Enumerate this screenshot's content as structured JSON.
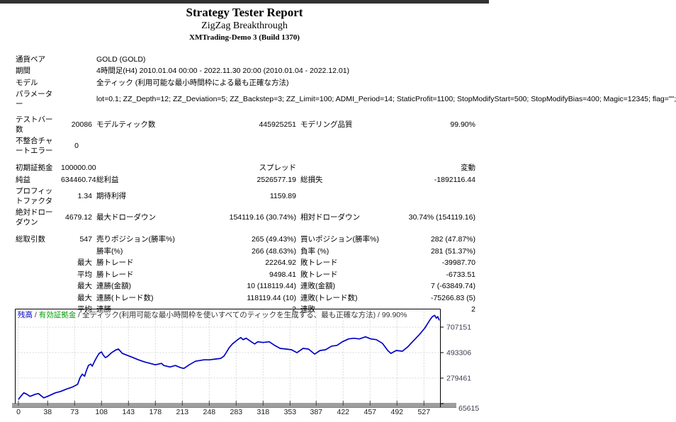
{
  "header": {
    "title": "Strategy Tester Report",
    "expert_name": "ZigZag Breakthrough",
    "server": "XMTrading-Demo 3 (Build 1370)"
  },
  "report": {
    "rows": [
      {
        "cells": [
          {
            "t": "通貨ペア"
          },
          {
            "t": ""
          },
          {
            "t": "GOLD (GOLD)",
            "s": 4
          }
        ]
      },
      {
        "cells": [
          {
            "t": "期間"
          },
          {
            "t": ""
          },
          {
            "t": "4時間足(H4) 2010.01.04 00:00 - 2022.11.30 20:00 (2010.01.04 - 2022.12.01)",
            "s": 4
          }
        ]
      },
      {
        "cells": [
          {
            "t": "モデル"
          },
          {
            "t": ""
          },
          {
            "t": "全ティック (利用可能な最小時間枠による最も正確な方法)",
            "s": 4
          }
        ]
      },
      {
        "cells": [
          {
            "t": "パラメーター"
          },
          {
            "t": ""
          },
          {
            "t": "lot=0.1; ZZ_Depth=12; ZZ_Deviation=5; ZZ_Backstep=3; ZZ_Limit=100; ADMI_Period=14; StaticProfit=1100; StopModifyStart=500; StopModifyBias=400; Magic=12345; flag=\"\";",
            "s": 4
          }
        ]
      },
      {
        "h": 6
      },
      {
        "cells": [
          {
            "t": "テストバー数"
          },
          {
            "t": "20086",
            "a": "r"
          },
          {
            "t": "モデルティック数"
          },
          {
            "t": "445925251",
            "a": "r"
          },
          {
            "t": "モデリング品質"
          },
          {
            "t": "99.90%",
            "a": "r"
          }
        ]
      },
      {
        "cells": [
          {
            "t": "不整合チャートエラー"
          },
          {
            "t": "0",
            "a": "c"
          },
          {
            "t": "",
            "s": 4
          }
        ]
      },
      {
        "h": 8
      },
      {
        "cells": [
          {
            "t": "初期証拠金"
          },
          {
            "t": "100000.00",
            "a": "r"
          },
          {
            "t": ""
          },
          {
            "t": "スプレッド",
            "a": "r"
          },
          {
            "t": "変動",
            "a": "r",
            "s": 2
          }
        ]
      },
      {
        "cells": [
          {
            "t": "純益"
          },
          {
            "t": "634460.74",
            "a": "r"
          },
          {
            "t": "総利益"
          },
          {
            "t": "2526577.19",
            "a": "r"
          },
          {
            "t": "総損失"
          },
          {
            "t": "-1892116.44",
            "a": "r"
          }
        ]
      },
      {
        "cells": [
          {
            "t": "プロフィットファクタ"
          },
          {
            "t": "1.34",
            "a": "r"
          },
          {
            "t": "期待利得"
          },
          {
            "t": "1159.89",
            "a": "r"
          },
          {
            "t": ""
          },
          {
            "t": ""
          }
        ]
      },
      {
        "cells": [
          {
            "t": "絶対ドローダウン"
          },
          {
            "t": "4679.12",
            "a": "r"
          },
          {
            "t": "最大ドローダウン"
          },
          {
            "t": "154119.16 (30.74%)",
            "a": "r"
          },
          {
            "t": "相対ドローダウン"
          },
          {
            "t": "30.74% (154119.16)",
            "a": "r"
          }
        ]
      },
      {
        "h": 8
      },
      {
        "cells": [
          {
            "t": "総取引数"
          },
          {
            "t": "547",
            "a": "r"
          },
          {
            "t": "売りポジション(勝率%)"
          },
          {
            "t": "265 (49.43%)",
            "a": "r"
          },
          {
            "t": "買いポジション(勝率%)"
          },
          {
            "t": "282 (47.87%)",
            "a": "r"
          }
        ]
      },
      {
        "cells": [
          {
            "t": ""
          },
          {
            "t": ""
          },
          {
            "t": "勝率(%)"
          },
          {
            "t": "266 (48.63%)",
            "a": "r"
          },
          {
            "t": "負率 (%)"
          },
          {
            "t": "281 (51.37%)",
            "a": "r"
          }
        ]
      },
      {
        "cells": [
          {
            "t": ""
          },
          {
            "t": "最大",
            "a": "r"
          },
          {
            "t": "勝トレード"
          },
          {
            "t": "22264.92",
            "a": "r"
          },
          {
            "t": "敗トレード"
          },
          {
            "t": "-39987.70",
            "a": "r"
          }
        ]
      },
      {
        "cells": [
          {
            "t": ""
          },
          {
            "t": "平均",
            "a": "r"
          },
          {
            "t": "勝トレード"
          },
          {
            "t": "9498.41",
            "a": "r"
          },
          {
            "t": "敗トレード"
          },
          {
            "t": "-6733.51",
            "a": "r"
          }
        ]
      },
      {
        "cells": [
          {
            "t": ""
          },
          {
            "t": "最大",
            "a": "r"
          },
          {
            "t": "連勝(金額)"
          },
          {
            "t": "10 (118119.44)",
            "a": "r"
          },
          {
            "t": "連敗(金額)"
          },
          {
            "t": "7 (-63849.74)",
            "a": "r"
          }
        ]
      },
      {
        "cells": [
          {
            "t": ""
          },
          {
            "t": "最大",
            "a": "r"
          },
          {
            "t": "連勝(トレード数)"
          },
          {
            "t": "118119.44 (10)",
            "a": "r"
          },
          {
            "t": "連敗(トレード数)"
          },
          {
            "t": "-75266.83 (5)",
            "a": "r"
          }
        ]
      },
      {
        "cells": [
          {
            "t": ""
          },
          {
            "t": "平均",
            "a": "r"
          },
          {
            "t": "連勝"
          },
          {
            "t": "2",
            "a": "r"
          },
          {
            "t": "連敗"
          },
          {
            "t": "2",
            "a": "r"
          }
        ]
      }
    ]
  },
  "chart_data": {
    "type": "line",
    "title": "残高 / 有効証拠金 / 全ティック(利用可能な最小時間枠を使いすべてのティックを生成する、最も正確な方法) / 99.90%",
    "legend": [
      {
        "label": "残高",
        "color": "#0000c8"
      },
      {
        "label": "有効証拠金",
        "color": "#00a000"
      },
      {
        "label": "全ティック(利用可能な最小時間枠を使いすべてのティックを生成する、最も正確な方法) / 99.90%",
        "color": "#333333"
      }
    ],
    "x_ticks": [
      0,
      38,
      73,
      108,
      143,
      178,
      213,
      248,
      283,
      318,
      353,
      387,
      422,
      457,
      492,
      527
    ],
    "y_ticks": [
      65615,
      279461,
      493306,
      707151
    ],
    "x_range": [
      0,
      547
    ],
    "grid": true,
    "legend_position": "top-left-inside",
    "series": [
      {
        "name": "残高",
        "color": "#0000c8",
        "points": [
          [
            0,
            100000
          ],
          [
            3,
            126000
          ],
          [
            7,
            156000
          ],
          [
            11,
            144000
          ],
          [
            15,
            126000
          ],
          [
            22,
            144000
          ],
          [
            26,
            150000
          ],
          [
            33,
            114000
          ],
          [
            40,
            132000
          ],
          [
            48,
            156000
          ],
          [
            55,
            168000
          ],
          [
            62,
            186000
          ],
          [
            70,
            204000
          ],
          [
            77,
            228000
          ],
          [
            80,
            282000
          ],
          [
            83,
            313000
          ],
          [
            86,
            295000
          ],
          [
            88,
            337000
          ],
          [
            91,
            385000
          ],
          [
            94,
            397000
          ],
          [
            96,
            379000
          ],
          [
            99,
            421000
          ],
          [
            102,
            457000
          ],
          [
            105,
            487000
          ],
          [
            108,
            499000
          ],
          [
            110,
            475000
          ],
          [
            113,
            451000
          ],
          [
            116,
            463000
          ],
          [
            121,
            493000
          ],
          [
            127,
            517000
          ],
          [
            130,
            523000
          ],
          [
            135,
            487000
          ],
          [
            142,
            469000
          ],
          [
            149,
            451000
          ],
          [
            156,
            433000
          ],
          [
            164,
            415000
          ],
          [
            171,
            403000
          ],
          [
            178,
            391000
          ],
          [
            186,
            403000
          ],
          [
            189,
            385000
          ],
          [
            197,
            373000
          ],
          [
            204,
            385000
          ],
          [
            211,
            367000
          ],
          [
            215,
            361000
          ],
          [
            222,
            391000
          ],
          [
            230,
            421000
          ],
          [
            241,
            433000
          ],
          [
            248,
            433000
          ],
          [
            256,
            439000
          ],
          [
            263,
            445000
          ],
          [
            267,
            463000
          ],
          [
            270,
            493000
          ],
          [
            274,
            535000
          ],
          [
            278,
            566000
          ],
          [
            285,
            602000
          ],
          [
            289,
            620000
          ],
          [
            292,
            602000
          ],
          [
            296,
            614000
          ],
          [
            304,
            578000
          ],
          [
            307,
            566000
          ],
          [
            311,
            584000
          ],
          [
            318,
            578000
          ],
          [
            326,
            584000
          ],
          [
            333,
            554000
          ],
          [
            340,
            529000
          ],
          [
            348,
            523000
          ],
          [
            355,
            517000
          ],
          [
            362,
            493000
          ],
          [
            370,
            529000
          ],
          [
            377,
            523000
          ],
          [
            385,
            481000
          ],
          [
            392,
            511000
          ],
          [
            399,
            517000
          ],
          [
            407,
            548000
          ],
          [
            414,
            554000
          ],
          [
            421,
            584000
          ],
          [
            429,
            608000
          ],
          [
            436,
            614000
          ],
          [
            443,
            608000
          ],
          [
            451,
            626000
          ],
          [
            458,
            608000
          ],
          [
            465,
            602000
          ],
          [
            473,
            572000
          ],
          [
            480,
            511000
          ],
          [
            484,
            487000
          ],
          [
            491,
            511000
          ],
          [
            499,
            505000
          ],
          [
            506,
            542000
          ],
          [
            513,
            590000
          ],
          [
            521,
            644000
          ],
          [
            528,
            698000
          ],
          [
            535,
            770000
          ],
          [
            538,
            795000
          ],
          [
            541,
            806000
          ],
          [
            543,
            782000
          ],
          [
            545,
            795000
          ],
          [
            547,
            764000
          ]
        ]
      }
    ],
    "colors": {
      "balance_line": "#0000c8",
      "equity_legend": "#00a000",
      "grid": "#d6d6d6",
      "plot_border": "#000000",
      "axis_bar": "#9e9e9e",
      "axis_bar_edge": "#7f7f7f",
      "tick": "#444444",
      "x_label": "#1a1a1a",
      "y_label": "#3c3c50",
      "top_strip": "#323232"
    }
  }
}
